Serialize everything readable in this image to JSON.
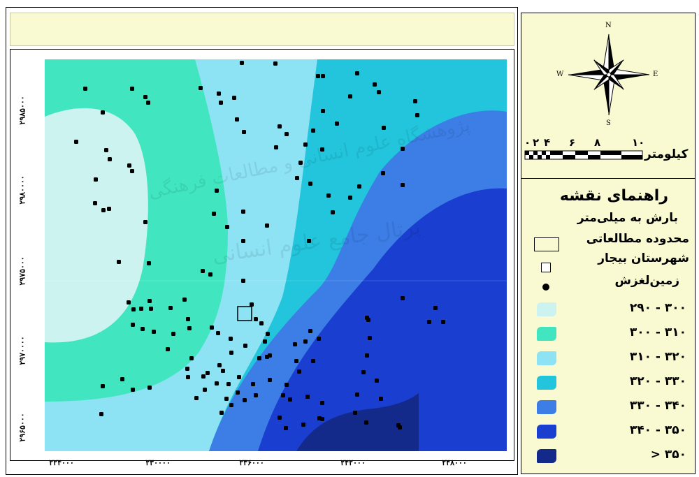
{
  "map": {
    "study_area_label": "",
    "y_ticks": [
      "۲۹۸۵۰۰۰",
      "۲۹۸۰۰۰۰",
      "۲۹۷۵۰۰۰",
      "۲۹۷۰۰۰۰",
      "۲۹۶۵۰۰۰"
    ],
    "x_ticks": [
      "۲۲۴۰۰۰",
      "۲۳۰۰۰۰",
      "۲۳۶۰۰۰",
      "۲۴۲۰۰۰",
      "۲۴۸۰۰۰"
    ],
    "watermark": [
      "پژوهشگاه علوم انسانی و مطالعات فرهنگی",
      "پرتال جامع علوم انسانی"
    ]
  },
  "compass": {
    "north": "N",
    "south": "S",
    "east": "E",
    "west": "W"
  },
  "scale_bar": {
    "unit_label": "کیلومتر",
    "ticks": [
      "۰",
      "۲",
      "۴",
      "۶",
      "۸",
      "۱۰"
    ]
  },
  "legend": {
    "title": "راهنمای نقشه",
    "subtitle": "بارش به میلی‌متر",
    "study_area": "محدوده مطالعاتی",
    "city": "شهرستان بیجار",
    "landslide": "زمین‌لغزش",
    "classes": [
      {
        "label": "۲۹۰ - ۳۰۰",
        "color": "#cdf3f0"
      },
      {
        "label": "۳۰۰ - ۳۱۰",
        "color": "#41e6c0"
      },
      {
        "label": "۳۱۰ - ۳۲۰",
        "color": "#8de2f4"
      },
      {
        "label": "۳۲۰ - ۳۳۰",
        "color": "#22c5dc"
      },
      {
        "label": "۳۳۰ - ۳۴۰",
        "color": "#3c7ee6"
      },
      {
        "label": "۳۴۰ - ۳۵۰",
        "color": "#1a3ed0"
      },
      {
        "label": "> ۳۵۰",
        "color": "#132a8a"
      }
    ]
  }
}
